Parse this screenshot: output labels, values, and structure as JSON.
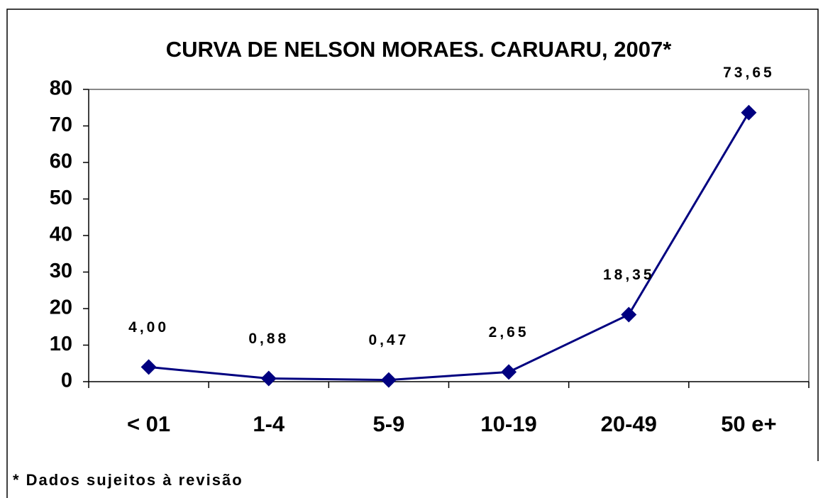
{
  "chart_data": {
    "type": "line",
    "title": "CURVA DE NELSON MORAES. CARUARU, 2007*",
    "annotation": "* Dados sujeitos à revisão",
    "categories": [
      "< 01",
      "1-4",
      "5-9",
      "10-19",
      "20-49",
      "50 e+"
    ],
    "series": [
      {
        "color": "#000080",
        "values": [
          4.0,
          0.88,
          0.47,
          2.65,
          18.35,
          73.65
        ],
        "value_labels": [
          "4,00",
          "0,88",
          "0,47",
          "2,65",
          "18,35",
          "73,65"
        ]
      }
    ],
    "ylim": [
      0,
      80
    ],
    "yticks": [
      0,
      10,
      20,
      30,
      40,
      50,
      60,
      70,
      80
    ],
    "grid": false
  }
}
